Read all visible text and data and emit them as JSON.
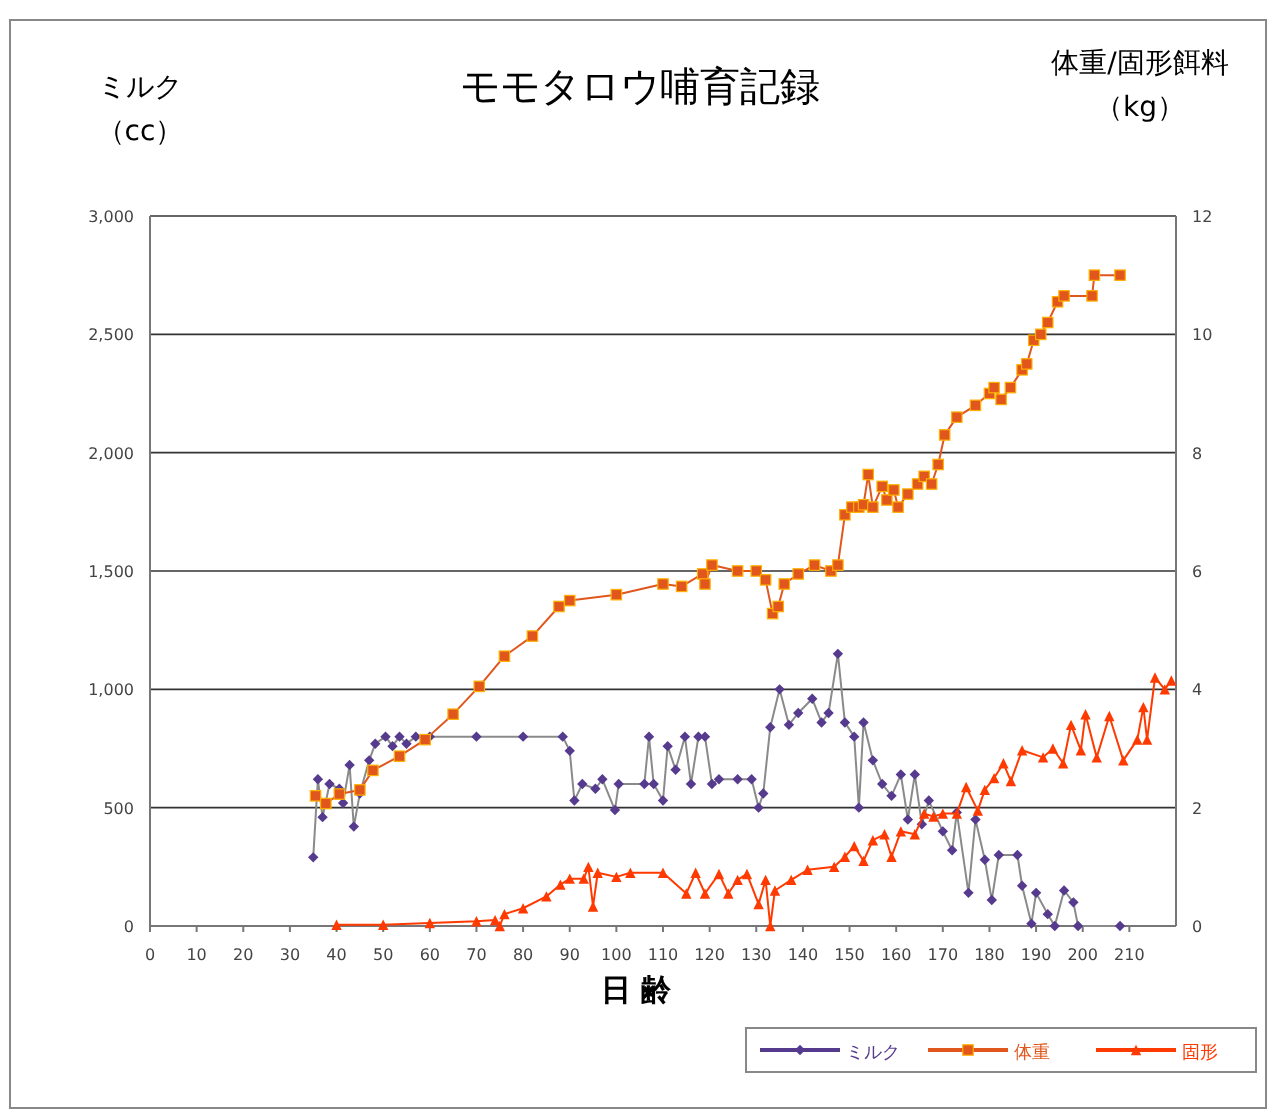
{
  "chart_data": {
    "type": "line",
    "title": "モモタロウ哺育記録",
    "xlabel": "日 齢",
    "ylabel": "ミルク（cc）",
    "y2label": "体重/固形餌料（kg）",
    "xlim": [
      0,
      220
    ],
    "xticks": [
      0,
      10,
      20,
      30,
      40,
      50,
      60,
      70,
      80,
      90,
      100,
      110,
      120,
      130,
      140,
      150,
      160,
      170,
      180,
      190,
      200,
      210
    ],
    "ylim": [
      0,
      3000
    ],
    "yticks": [
      0,
      500,
      {
        "value": 1000,
        "label": "1,000"
      },
      {
        "value": 1500,
        "label": "1,500"
      },
      {
        "value": 2000,
        "label": "2,000"
      },
      {
        "value": 2500,
        "label": "2,500"
      },
      {
        "value": 3000,
        "label": "3,000"
      }
    ],
    "y2lim": [
      0,
      12
    ],
    "y2ticks": [
      0,
      2,
      4,
      6,
      8,
      10,
      12
    ],
    "grid": "y",
    "legend": "bottom right",
    "series": [
      {
        "name": "ミルク",
        "color": "#553a8e",
        "marker": "diamond",
        "x": [
          35,
          36,
          37,
          38.5,
          40.6,
          41.4,
          42.8,
          43.7,
          45,
          47,
          48.3,
          50.5,
          52,
          53.5,
          55,
          57,
          60,
          70,
          80,
          88.5,
          90,
          91,
          92.7,
          95.5,
          97,
          99.7,
          100.5,
          106,
          107,
          108,
          110,
          111,
          112.7,
          114.7,
          116,
          117.6,
          119,
          120.5,
          122,
          126,
          129,
          130.5,
          131.5,
          133,
          135,
          137,
          139,
          142,
          144,
          145.5,
          147.5,
          149,
          151,
          152,
          153,
          155,
          157,
          159,
          161,
          162.5,
          164,
          165.5,
          167,
          170,
          172,
          173,
          175.5,
          177,
          179,
          180.5,
          182,
          186,
          187,
          189,
          190,
          192.5,
          194,
          196,
          198,
          199,
          208
        ],
        "values": [
          290,
          620,
          460,
          600,
          580,
          520,
          680,
          420,
          560,
          700,
          770,
          800,
          760,
          800,
          770,
          800,
          800,
          800,
          800,
          800,
          740,
          530,
          600,
          580,
          620,
          490,
          600,
          600,
          800,
          600,
          530,
          760,
          660,
          800,
          600,
          800,
          800,
          600,
          620,
          620,
          620,
          500,
          560,
          840,
          1000,
          850,
          900,
          960,
          860,
          900,
          1150,
          860,
          800,
          500,
          860,
          700,
          600,
          550,
          640,
          450,
          640,
          430,
          530,
          400,
          320,
          480,
          140,
          450,
          280,
          110,
          300,
          300,
          170,
          10,
          140,
          50,
          0,
          150,
          100,
          0,
          0
        ]
      },
      {
        "name": "体重",
        "color": "#e0561c",
        "marker": "square",
        "axis": "y2",
        "x": [
          35.5,
          37.7,
          40.6,
          45,
          47.8,
          53.5,
          59,
          65,
          70.6,
          76,
          82,
          87.7,
          90,
          100,
          110,
          114,
          118.5,
          119,
          120.5,
          126,
          130,
          132,
          133.5,
          134.7,
          136,
          139,
          142.5,
          146,
          147.5,
          149,
          150.5,
          152,
          153,
          154,
          155,
          157,
          158,
          159.5,
          160.4,
          162.5,
          164.6,
          166,
          167.6,
          169,
          170.4,
          173,
          177,
          180,
          181,
          182.5,
          184.5,
          187,
          188,
          189.5,
          191,
          192.5,
          194.6,
          196,
          202,
          202.5,
          208
        ],
        "values": [
          2.2,
          2.07,
          2.23,
          2.3,
          2.63,
          2.87,
          3.15,
          3.58,
          4.05,
          4.56,
          4.9,
          5.4,
          5.5,
          5.6,
          5.78,
          5.74,
          5.95,
          5.78,
          6.1,
          6.0,
          6.0,
          5.85,
          5.28,
          5.4,
          5.78,
          5.95,
          6.1,
          6.0,
          6.1,
          6.95,
          7.08,
          7.08,
          7.12,
          7.63,
          7.08,
          7.43,
          7.2,
          7.37,
          7.08,
          7.3,
          7.47,
          7.6,
          7.47,
          7.8,
          8.3,
          8.6,
          8.8,
          9.0,
          9.1,
          8.9,
          9.1,
          9.4,
          9.5,
          9.9,
          10.0,
          10.2,
          10.55,
          10.65,
          10.65,
          11.0,
          11.0
        ]
      },
      {
        "name": "固形",
        "color": "#ff3a00",
        "marker": "triangle",
        "axis": "y2",
        "x": [
          40,
          50,
          60,
          70,
          74,
          75,
          76,
          80,
          85,
          88,
          90,
          93,
          94,
          95,
          96,
          100,
          103,
          110,
          115,
          117,
          119,
          122,
          124,
          126,
          128,
          130.5,
          132,
          133,
          134,
          137.5,
          141,
          146.7,
          149,
          151,
          153,
          155,
          157.5,
          159,
          161,
          164,
          166,
          168,
          170,
          173,
          175,
          177.5,
          179,
          181,
          183,
          184.6,
          187,
          191.5,
          193.6,
          195.8,
          197.5,
          199.6,
          200.6,
          203,
          205.7,
          208.7,
          211.7,
          213,
          213.8,
          215.5,
          217.6,
          219
        ],
        "values": [
          0.02,
          0.02,
          0.05,
          0.08,
          0.1,
          0,
          0.2,
          0.3,
          0.5,
          0.7,
          0.8,
          0.8,
          1.0,
          0.33,
          0.9,
          0.83,
          0.9,
          0.9,
          0.55,
          0.9,
          0.55,
          0.88,
          0.55,
          0.78,
          0.88,
          0.37,
          0.78,
          0,
          0.6,
          0.78,
          0.95,
          1.0,
          1.17,
          1.35,
          1.1,
          1.45,
          1.55,
          1.17,
          1.6,
          1.55,
          1.9,
          1.85,
          1.9,
          1.9,
          2.35,
          1.95,
          2.3,
          2.5,
          2.75,
          2.45,
          2.97,
          2.85,
          3.0,
          2.75,
          3.4,
          2.97,
          3.58,
          2.85,
          3.55,
          2.8,
          3.15,
          3.7,
          3.15,
          4.2,
          4.0,
          4.15
        ]
      }
    ]
  }
}
